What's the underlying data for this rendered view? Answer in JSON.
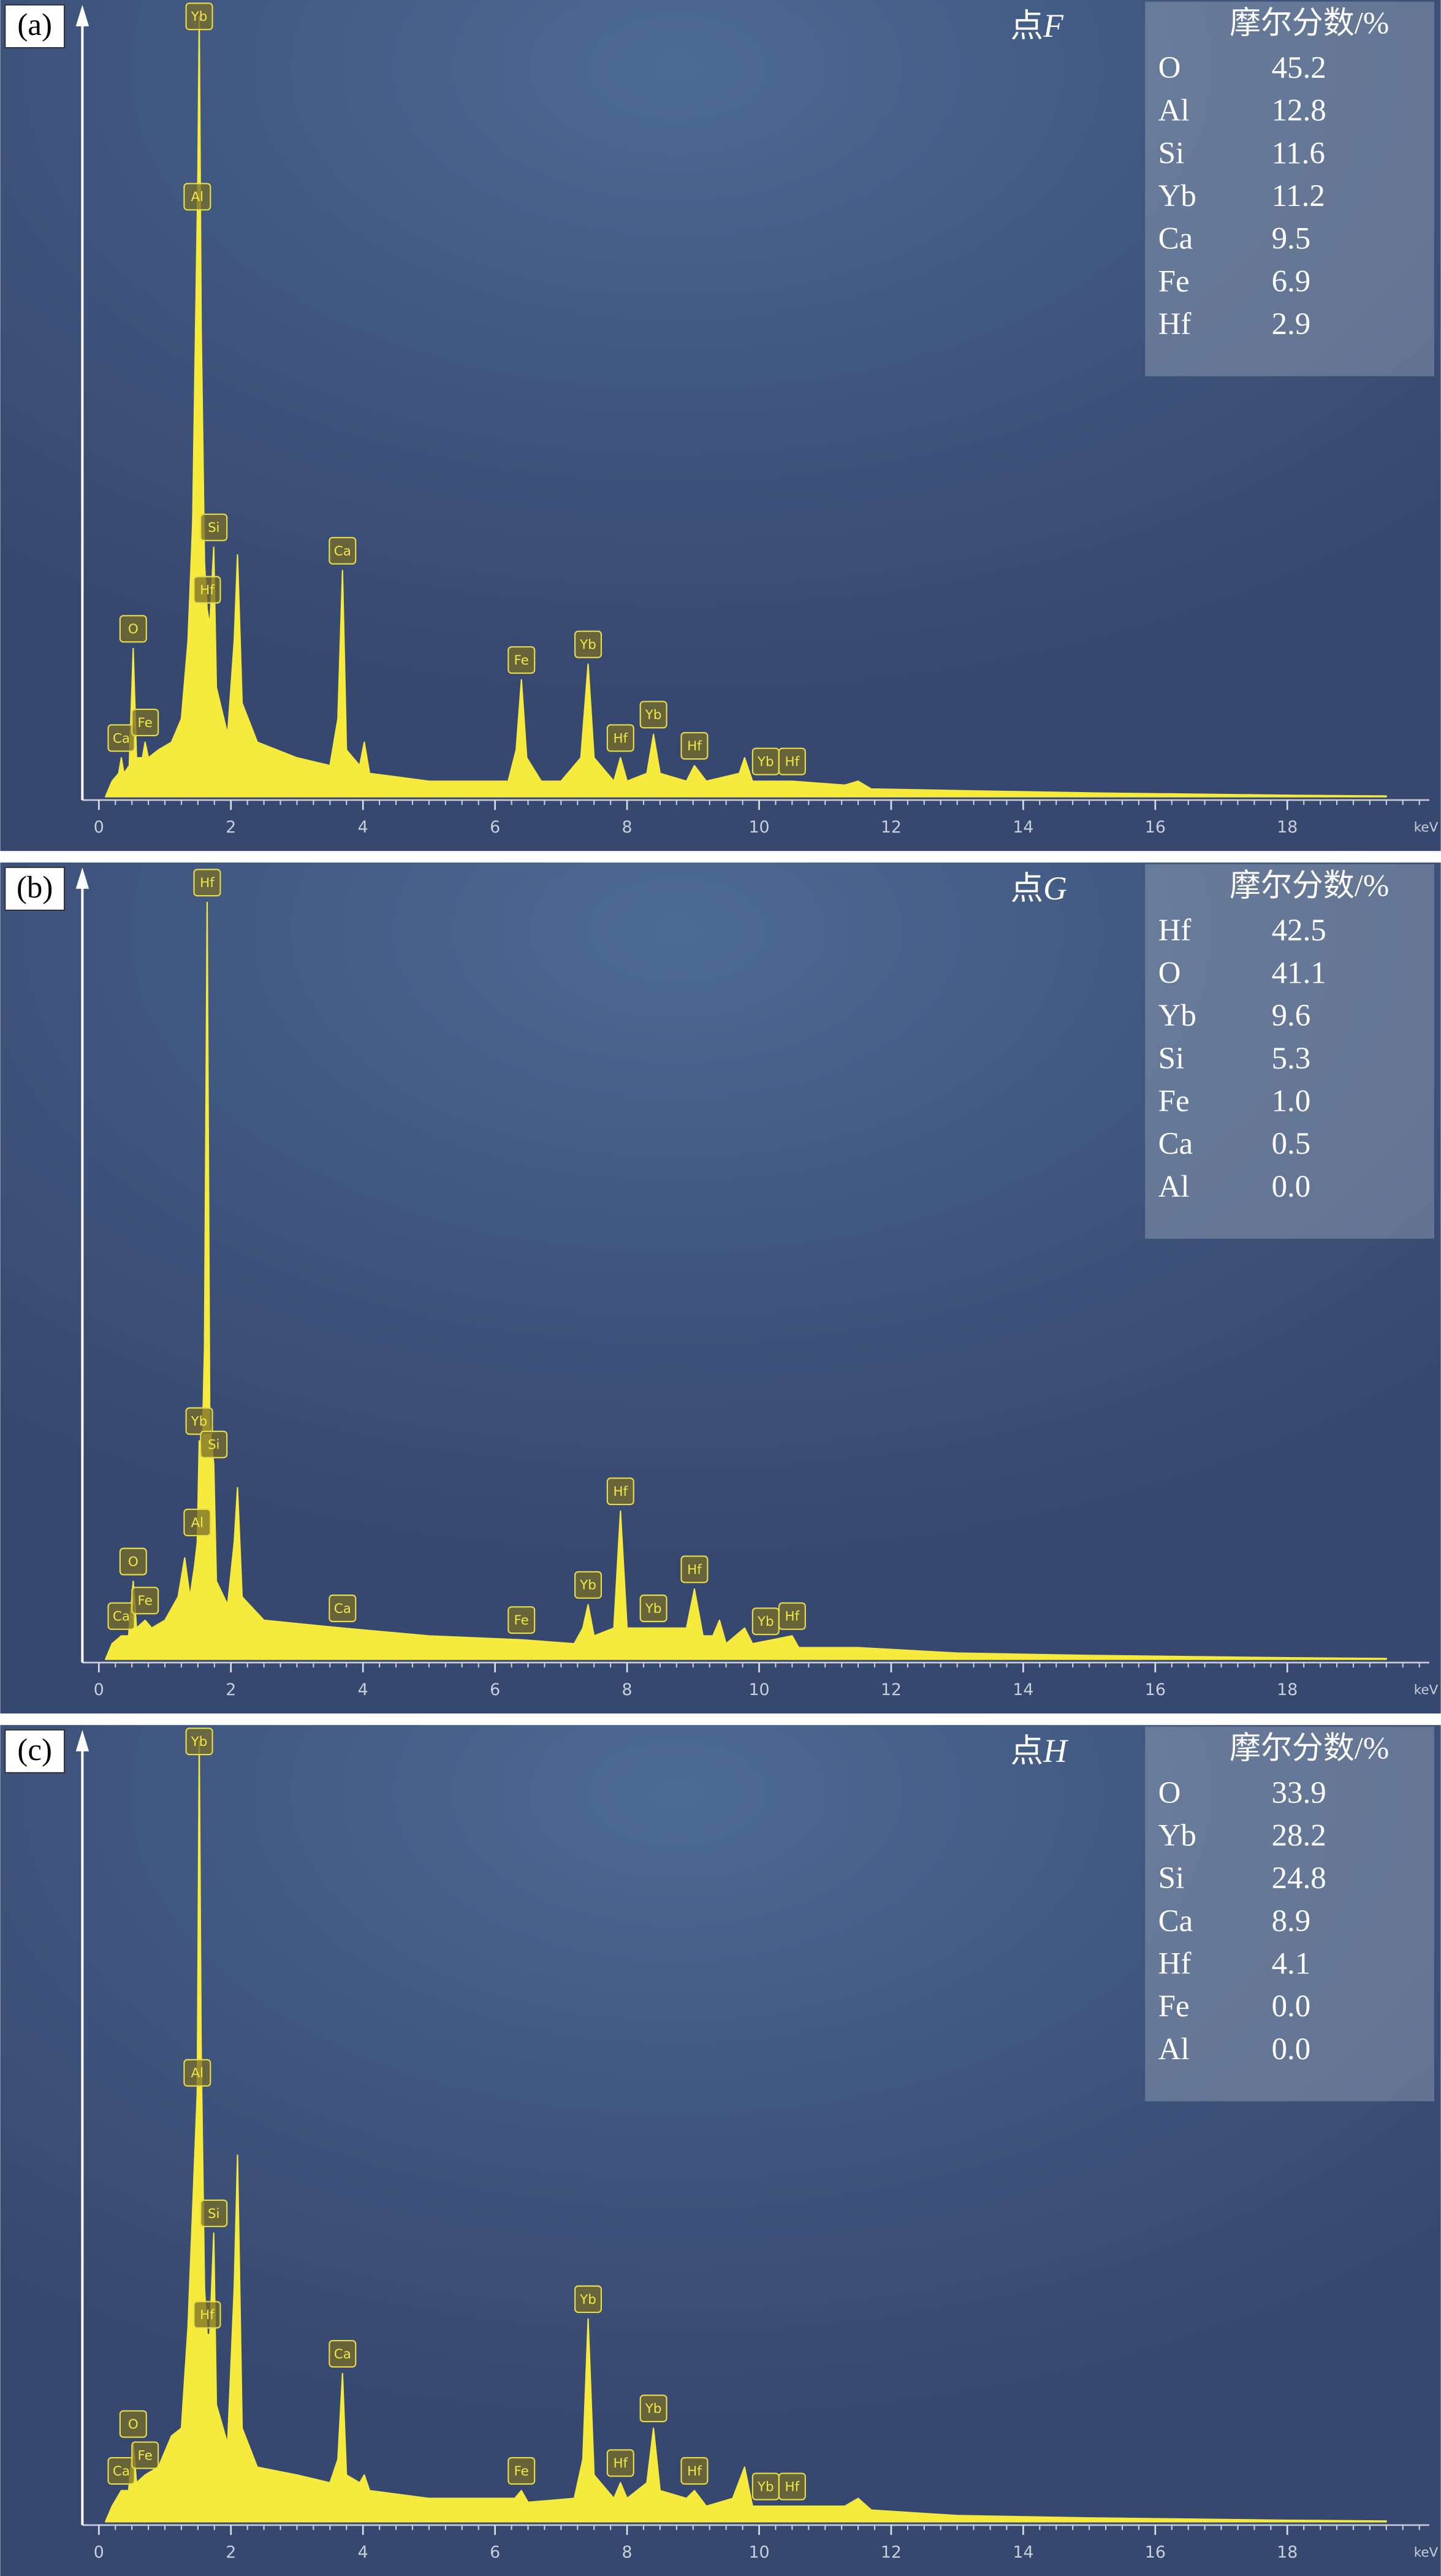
{
  "chart_data": [
    {
      "type": "spectrum",
      "panel_label": "(a)",
      "title": "点",
      "title_italic": "F",
      "color": "#f6ea3c",
      "xlabel": "keV",
      "xlim": [
        -0.25,
        20.15
      ],
      "ylim": [
        0,
        100
      ],
      "xticks": [
        0,
        2,
        4,
        6,
        8,
        10,
        12,
        14,
        16,
        18
      ],
      "x": [
        0.1,
        0.2,
        0.3,
        0.34,
        0.38,
        0.46,
        0.52,
        0.57,
        0.66,
        0.7,
        0.75,
        0.9,
        1.1,
        1.25,
        1.35,
        1.42,
        1.5,
        1.52,
        1.55,
        1.6,
        1.64,
        1.68,
        1.74,
        1.78,
        1.95,
        2.05,
        2.1,
        2.17,
        2.4,
        3.0,
        3.5,
        3.62,
        3.69,
        3.75,
        3.95,
        4.02,
        4.1,
        5.0,
        6.2,
        6.32,
        6.4,
        6.48,
        6.7,
        7.0,
        7.3,
        7.41,
        7.5,
        7.8,
        7.9,
        8.0,
        8.3,
        8.4,
        8.5,
        8.9,
        9.02,
        9.2,
        9.7,
        9.78,
        9.9,
        10.5,
        11.3,
        11.5,
        11.7,
        13,
        15,
        18,
        19.5
      ],
      "values": [
        0,
        2,
        3,
        5,
        3,
        4,
        19,
        5,
        5,
        7,
        5,
        6,
        7,
        10,
        20,
        35,
        80,
        100,
        60,
        30,
        24,
        22,
        32,
        14,
        8,
        20,
        31,
        12,
        7,
        5,
        4,
        10,
        29,
        6,
        4,
        7,
        3,
        2,
        2,
        6,
        15,
        5,
        2,
        2,
        5,
        17,
        5,
        2,
        5,
        2,
        3,
        8,
        3,
        2,
        4,
        2,
        3,
        5,
        2,
        2,
        1.5,
        2,
        1,
        0.8,
        0.5,
        0.2,
        0.1
      ],
      "peak_labels": [
        {
          "text": "Ca",
          "x": 0.34
        },
        {
          "text": "O",
          "x": 0.52
        },
        {
          "text": "Fe",
          "x": 0.7
        },
        {
          "text": "Yb",
          "x": 1.52
        },
        {
          "text": "Al",
          "x": 1.49
        },
        {
          "text": "Hf",
          "x": 1.64
        },
        {
          "text": "Si",
          "x": 1.74
        },
        {
          "text": "Ca",
          "x": 3.69
        },
        {
          "text": "Fe",
          "x": 6.4
        },
        {
          "text": "Yb",
          "x": 7.41
        },
        {
          "text": "Hf",
          "x": 7.9
        },
        {
          "text": "Yb",
          "x": 8.4
        },
        {
          "text": "Hf",
          "x": 9.02
        },
        {
          "text": "Yb",
          "x": 10.1
        },
        {
          "text": "Hf",
          "x": 10.5
        }
      ],
      "table": {
        "header": "摩尔分数/%",
        "rows": [
          [
            "O",
            "45.2"
          ],
          [
            "Al",
            "12.8"
          ],
          [
            "Si",
            "11.6"
          ],
          [
            "Yb",
            "11.2"
          ],
          [
            "Ca",
            "9.5"
          ],
          [
            "Fe",
            "6.9"
          ],
          [
            "Hf",
            "2.9"
          ]
        ]
      }
    },
    {
      "type": "spectrum",
      "panel_label": "(b)",
      "title": "点",
      "title_italic": "G",
      "color": "#f6ea3c",
      "xlabel": "keV",
      "xlim": [
        -0.25,
        20.15
      ],
      "ylim": [
        0,
        100
      ],
      "xticks": [
        0,
        2,
        4,
        6,
        8,
        10,
        12,
        14,
        16,
        18
      ],
      "x": [
        0.1,
        0.2,
        0.34,
        0.45,
        0.52,
        0.57,
        0.7,
        0.8,
        1.0,
        1.2,
        1.3,
        1.38,
        1.45,
        1.49,
        1.52,
        1.56,
        1.6,
        1.64,
        1.68,
        1.74,
        1.78,
        1.95,
        2.05,
        2.1,
        2.17,
        2.5,
        3.69,
        5,
        6.4,
        7.2,
        7.33,
        7.41,
        7.5,
        7.8,
        7.9,
        8.0,
        8.4,
        8.9,
        9.02,
        9.15,
        9.3,
        9.4,
        9.5,
        9.78,
        9.9,
        10.5,
        10.6,
        11.5,
        13,
        15,
        18,
        19.5
      ],
      "values": [
        0,
        2,
        3,
        3,
        10,
        4,
        5,
        4,
        5,
        8,
        13,
        8,
        12,
        15,
        28,
        25,
        40,
        97,
        30,
        25,
        10,
        7,
        15,
        22,
        8,
        5,
        4,
        3,
        2.5,
        2,
        4,
        7,
        3,
        4,
        19,
        4,
        4,
        4,
        9,
        3,
        3,
        5,
        2,
        4,
        2,
        3,
        1.5,
        1.5,
        0.8,
        0.5,
        0.2,
        0.1
      ],
      "peak_labels": [
        {
          "text": "Ca",
          "x": 0.34
        },
        {
          "text": "O",
          "x": 0.52
        },
        {
          "text": "Fe",
          "x": 0.7
        },
        {
          "text": "Al",
          "x": 1.49
        },
        {
          "text": "Yb",
          "x": 1.52
        },
        {
          "text": "Hf",
          "x": 1.64
        },
        {
          "text": "Si",
          "x": 1.74
        },
        {
          "text": "Ca",
          "x": 3.69
        },
        {
          "text": "Fe",
          "x": 6.4
        },
        {
          "text": "Yb",
          "x": 7.41
        },
        {
          "text": "Hf",
          "x": 7.9
        },
        {
          "text": "Yb",
          "x": 8.4
        },
        {
          "text": "Hf",
          "x": 9.02
        },
        {
          "text": "Yb",
          "x": 10.1
        },
        {
          "text": "Hf",
          "x": 10.5
        }
      ],
      "table": {
        "header": "摩尔分数/%",
        "rows": [
          [
            "Hf",
            "42.5"
          ],
          [
            "O",
            "41.1"
          ],
          [
            "Yb",
            "9.6"
          ],
          [
            "Si",
            "5.3"
          ],
          [
            "Fe",
            "1.0"
          ],
          [
            "Ca",
            "0.5"
          ],
          [
            "Al",
            "0.0"
          ]
        ]
      }
    },
    {
      "type": "spectrum",
      "panel_label": "(c)",
      "title": "点",
      "title_italic": "H",
      "color": "#f6ea3c",
      "xlabel": "keV",
      "xlim": [
        -0.25,
        20.15
      ],
      "ylim": [
        0,
        100
      ],
      "xticks": [
        0,
        2,
        4,
        6,
        8,
        10,
        12,
        14,
        16,
        18
      ],
      "x": [
        0.1,
        0.2,
        0.34,
        0.45,
        0.52,
        0.57,
        0.7,
        0.9,
        1.1,
        1.25,
        1.35,
        1.42,
        1.49,
        1.52,
        1.55,
        1.6,
        1.64,
        1.68,
        1.74,
        1.78,
        1.95,
        2.05,
        2.1,
        2.17,
        2.4,
        3.0,
        3.5,
        3.62,
        3.69,
        3.75,
        3.95,
        4.02,
        4.1,
        5,
        6.3,
        6.4,
        6.5,
        7.2,
        7.33,
        7.41,
        7.5,
        7.8,
        7.9,
        8.0,
        8.3,
        8.4,
        8.5,
        8.9,
        9.02,
        9.2,
        9.6,
        9.78,
        9.9,
        10.5,
        11.3,
        11.5,
        11.7,
        13,
        15,
        18,
        19.5
      ],
      "values": [
        0,
        2,
        4,
        4,
        10,
        5,
        6,
        7,
        11,
        12,
        25,
        40,
        55,
        100,
        60,
        30,
        24,
        24,
        37,
        15,
        10,
        30,
        47,
        12,
        7,
        6,
        5,
        8,
        19,
        6,
        5,
        6,
        4,
        3,
        3,
        4,
        2.5,
        3,
        8,
        26,
        6,
        3,
        5,
        3,
        5,
        12,
        4,
        3,
        4,
        2,
        3,
        7,
        2,
        2,
        2,
        3,
        1.5,
        0.8,
        0.5,
        0.2,
        0.1
      ],
      "peak_labels": [
        {
          "text": "Ca",
          "x": 0.34
        },
        {
          "text": "O",
          "x": 0.52
        },
        {
          "text": "Fe",
          "x": 0.7
        },
        {
          "text": "Yb",
          "x": 1.52
        },
        {
          "text": "Al",
          "x": 1.49
        },
        {
          "text": "Hf",
          "x": 1.64
        },
        {
          "text": "Si",
          "x": 1.74
        },
        {
          "text": "Ca",
          "x": 3.69
        },
        {
          "text": "Fe",
          "x": 6.4
        },
        {
          "text": "Yb",
          "x": 7.41
        },
        {
          "text": "Hf",
          "x": 7.9
        },
        {
          "text": "Yb",
          "x": 8.4
        },
        {
          "text": "Hf",
          "x": 9.02
        },
        {
          "text": "Yb",
          "x": 10.1
        },
        {
          "text": "Hf",
          "x": 10.5
        }
      ],
      "table": {
        "header": "摩尔分数/%",
        "rows": [
          [
            "O",
            "33.9"
          ],
          [
            "Yb",
            "28.2"
          ],
          [
            "Si",
            "24.8"
          ],
          [
            "Ca",
            "8.9"
          ],
          [
            "Hf",
            "4.1"
          ],
          [
            "Fe",
            "0.0"
          ],
          [
            "Al",
            "0.0"
          ]
        ]
      }
    }
  ]
}
